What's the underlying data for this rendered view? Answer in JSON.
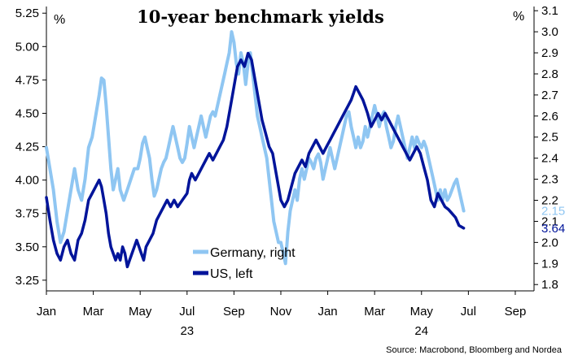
{
  "chart_data": {
    "type": "line",
    "title": "10-year benchmark yields",
    "left_axis": {
      "unit": "%",
      "ticks": [
        "5.25",
        "5.00",
        "4.75",
        "4.50",
        "4.25",
        "4.00",
        "3.75",
        "3.50",
        "3.25"
      ],
      "range": [
        3.17,
        5.3
      ]
    },
    "right_axis": {
      "unit": "%",
      "ticks": [
        "3.1",
        "3.0",
        "2.9",
        "2.8",
        "2.7",
        "2.6",
        "2.5",
        "2.4",
        "2.3",
        "2.2",
        "2.1",
        "2.0",
        "1.9",
        "1.8"
      ],
      "range": [
        1.77,
        3.12
      ]
    },
    "x_axis": {
      "ticks": [
        "Jan",
        "Mar",
        "May",
        "Jul",
        "Sep",
        "Nov",
        "Jan",
        "Mar",
        "May",
        "Jul",
        "Sep"
      ],
      "years": [
        {
          "label": "23",
          "under": 3
        },
        {
          "label": "24",
          "under": 8
        }
      ],
      "range": [
        0,
        20.8
      ]
    },
    "legend_position": "bottom-center",
    "series": [
      {
        "name": "Germany, right",
        "axis": "right",
        "color": "#8fc6f2",
        "end_label": "2.15",
        "points": [
          [
            0.0,
            2.45
          ],
          [
            0.15,
            2.35
          ],
          [
            0.3,
            2.25
          ],
          [
            0.45,
            2.1
          ],
          [
            0.6,
            2.0
          ],
          [
            0.75,
            2.05
          ],
          [
            0.9,
            2.15
          ],
          [
            1.05,
            2.25
          ],
          [
            1.2,
            2.35
          ],
          [
            1.35,
            2.25
          ],
          [
            1.5,
            2.2
          ],
          [
            1.65,
            2.3
          ],
          [
            1.8,
            2.45
          ],
          [
            1.95,
            2.5
          ],
          [
            2.1,
            2.6
          ],
          [
            2.25,
            2.7
          ],
          [
            2.35,
            2.78
          ],
          [
            2.45,
            2.77
          ],
          [
            2.55,
            2.65
          ],
          [
            2.65,
            2.5
          ],
          [
            2.75,
            2.35
          ],
          [
            2.85,
            2.25
          ],
          [
            2.95,
            2.3
          ],
          [
            3.05,
            2.35
          ],
          [
            3.15,
            2.25
          ],
          [
            3.3,
            2.2
          ],
          [
            3.45,
            2.25
          ],
          [
            3.6,
            2.3
          ],
          [
            3.75,
            2.35
          ],
          [
            3.9,
            2.35
          ],
          [
            4.0,
            2.4
          ],
          [
            4.1,
            2.47
          ],
          [
            4.2,
            2.5
          ],
          [
            4.3,
            2.45
          ],
          [
            4.4,
            2.4
          ],
          [
            4.5,
            2.3
          ],
          [
            4.6,
            2.22
          ],
          [
            4.7,
            2.25
          ],
          [
            4.8,
            2.3
          ],
          [
            4.9,
            2.35
          ],
          [
            5.0,
            2.38
          ],
          [
            5.1,
            2.4
          ],
          [
            5.2,
            2.45
          ],
          [
            5.3,
            2.5
          ],
          [
            5.4,
            2.55
          ],
          [
            5.5,
            2.5
          ],
          [
            5.6,
            2.45
          ],
          [
            5.7,
            2.4
          ],
          [
            5.8,
            2.38
          ],
          [
            5.9,
            2.4
          ],
          [
            6.0,
            2.47
          ],
          [
            6.1,
            2.55
          ],
          [
            6.2,
            2.5
          ],
          [
            6.3,
            2.45
          ],
          [
            6.4,
            2.5
          ],
          [
            6.5,
            2.55
          ],
          [
            6.6,
            2.6
          ],
          [
            6.7,
            2.55
          ],
          [
            6.8,
            2.5
          ],
          [
            6.9,
            2.55
          ],
          [
            7.0,
            2.6
          ],
          [
            7.1,
            2.62
          ],
          [
            7.2,
            2.6
          ],
          [
            7.3,
            2.65
          ],
          [
            7.4,
            2.7
          ],
          [
            7.5,
            2.75
          ],
          [
            7.6,
            2.8
          ],
          [
            7.7,
            2.85
          ],
          [
            7.8,
            2.9
          ],
          [
            7.9,
            3.0
          ],
          [
            8.0,
            2.95
          ],
          [
            8.1,
            2.85
          ],
          [
            8.2,
            2.8
          ],
          [
            8.3,
            2.9
          ],
          [
            8.4,
            2.85
          ],
          [
            8.5,
            2.75
          ],
          [
            8.6,
            2.85
          ],
          [
            8.7,
            2.9
          ],
          [
            8.8,
            2.8
          ],
          [
            8.9,
            2.7
          ],
          [
            9.0,
            2.6
          ],
          [
            9.1,
            2.55
          ],
          [
            9.2,
            2.5
          ],
          [
            9.3,
            2.45
          ],
          [
            9.4,
            2.4
          ],
          [
            9.5,
            2.3
          ],
          [
            9.6,
            2.2
          ],
          [
            9.7,
            2.1
          ],
          [
            9.8,
            2.05
          ],
          [
            9.9,
            2.0
          ],
          [
            10.0,
            2.0
          ],
          [
            10.1,
            1.95
          ],
          [
            10.2,
            1.9
          ],
          [
            10.3,
            2.05
          ],
          [
            10.4,
            2.15
          ],
          [
            10.5,
            2.2
          ],
          [
            10.6,
            2.25
          ],
          [
            10.7,
            2.2
          ],
          [
            10.8,
            2.3
          ],
          [
            10.9,
            2.35
          ],
          [
            11.0,
            2.3
          ],
          [
            11.1,
            2.35
          ],
          [
            11.2,
            2.4
          ],
          [
            11.3,
            2.38
          ],
          [
            11.4,
            2.35
          ],
          [
            11.5,
            2.4
          ],
          [
            11.6,
            2.42
          ],
          [
            11.7,
            2.38
          ],
          [
            11.8,
            2.3
          ],
          [
            11.9,
            2.35
          ],
          [
            12.0,
            2.4
          ],
          [
            12.1,
            2.45
          ],
          [
            12.2,
            2.4
          ],
          [
            12.3,
            2.35
          ],
          [
            12.4,
            2.4
          ],
          [
            12.5,
            2.45
          ],
          [
            12.6,
            2.5
          ],
          [
            12.7,
            2.55
          ],
          [
            12.8,
            2.6
          ],
          [
            12.9,
            2.62
          ],
          [
            13.0,
            2.55
          ],
          [
            13.1,
            2.5
          ],
          [
            13.2,
            2.45
          ],
          [
            13.3,
            2.5
          ],
          [
            13.4,
            2.45
          ],
          [
            13.5,
            2.48
          ],
          [
            13.6,
            2.55
          ],
          [
            13.7,
            2.5
          ],
          [
            13.8,
            2.55
          ],
          [
            13.9,
            2.6
          ],
          [
            14.0,
            2.65
          ],
          [
            14.1,
            2.6
          ],
          [
            14.2,
            2.55
          ],
          [
            14.3,
            2.6
          ],
          [
            14.4,
            2.62
          ],
          [
            14.5,
            2.55
          ],
          [
            14.6,
            2.5
          ],
          [
            14.7,
            2.45
          ],
          [
            14.8,
            2.48
          ],
          [
            14.9,
            2.55
          ],
          [
            15.0,
            2.6
          ],
          [
            15.1,
            2.55
          ],
          [
            15.2,
            2.5
          ],
          [
            15.3,
            2.45
          ],
          [
            15.4,
            2.4
          ],
          [
            15.5,
            2.45
          ],
          [
            15.6,
            2.5
          ],
          [
            15.7,
            2.45
          ],
          [
            15.8,
            2.5
          ],
          [
            15.9,
            2.47
          ],
          [
            16.0,
            2.45
          ],
          [
            16.1,
            2.48
          ],
          [
            16.2,
            2.45
          ],
          [
            16.3,
            2.4
          ],
          [
            16.4,
            2.35
          ],
          [
            16.5,
            2.3
          ],
          [
            16.6,
            2.25
          ],
          [
            16.7,
            2.2
          ],
          [
            16.8,
            2.25
          ],
          [
            16.9,
            2.2
          ],
          [
            17.0,
            2.25
          ],
          [
            17.1,
            2.2
          ],
          [
            17.2,
            2.22
          ],
          [
            17.3,
            2.25
          ],
          [
            17.4,
            2.28
          ],
          [
            17.5,
            2.3
          ],
          [
            17.6,
            2.25
          ],
          [
            17.7,
            2.2
          ],
          [
            17.8,
            2.15
          ]
        ]
      },
      {
        "name": "US, left",
        "axis": "left",
        "color": "#00149a",
        "end_label": "3.64",
        "points": [
          [
            0.0,
            3.87
          ],
          [
            0.15,
            3.7
          ],
          [
            0.3,
            3.55
          ],
          [
            0.45,
            3.45
          ],
          [
            0.6,
            3.4
          ],
          [
            0.75,
            3.5
          ],
          [
            0.9,
            3.55
          ],
          [
            1.05,
            3.45
          ],
          [
            1.2,
            3.4
          ],
          [
            1.35,
            3.55
          ],
          [
            1.5,
            3.6
          ],
          [
            1.65,
            3.7
          ],
          [
            1.8,
            3.85
          ],
          [
            1.95,
            3.9
          ],
          [
            2.1,
            3.95
          ],
          [
            2.25,
            4.0
          ],
          [
            2.35,
            3.95
          ],
          [
            2.45,
            3.85
          ],
          [
            2.55,
            3.75
          ],
          [
            2.65,
            3.6
          ],
          [
            2.75,
            3.5
          ],
          [
            2.85,
            3.45
          ],
          [
            2.95,
            3.4
          ],
          [
            3.05,
            3.45
          ],
          [
            3.15,
            3.4
          ],
          [
            3.25,
            3.5
          ],
          [
            3.35,
            3.45
          ],
          [
            3.45,
            3.35
          ],
          [
            3.55,
            3.4
          ],
          [
            3.65,
            3.45
          ],
          [
            3.75,
            3.5
          ],
          [
            3.85,
            3.55
          ],
          [
            3.95,
            3.5
          ],
          [
            4.05,
            3.45
          ],
          [
            4.15,
            3.4
          ],
          [
            4.25,
            3.5
          ],
          [
            4.4,
            3.55
          ],
          [
            4.55,
            3.6
          ],
          [
            4.7,
            3.7
          ],
          [
            4.85,
            3.75
          ],
          [
            5.0,
            3.8
          ],
          [
            5.15,
            3.85
          ],
          [
            5.3,
            3.8
          ],
          [
            5.45,
            3.85
          ],
          [
            5.6,
            3.8
          ],
          [
            5.8,
            3.85
          ],
          [
            6.0,
            3.9
          ],
          [
            6.1,
            4.0
          ],
          [
            6.2,
            4.05
          ],
          [
            6.35,
            4.0
          ],
          [
            6.5,
            4.05
          ],
          [
            6.65,
            4.1
          ],
          [
            6.8,
            4.15
          ],
          [
            6.95,
            4.2
          ],
          [
            7.1,
            4.15
          ],
          [
            7.25,
            4.2
          ],
          [
            7.4,
            4.25
          ],
          [
            7.55,
            4.3
          ],
          [
            7.7,
            4.4
          ],
          [
            7.85,
            4.55
          ],
          [
            8.0,
            4.7
          ],
          [
            8.15,
            4.85
          ],
          [
            8.3,
            4.9
          ],
          [
            8.45,
            4.85
          ],
          [
            8.6,
            4.95
          ],
          [
            8.75,
            4.9
          ],
          [
            8.9,
            4.75
          ],
          [
            9.05,
            4.6
          ],
          [
            9.2,
            4.45
          ],
          [
            9.35,
            4.35
          ],
          [
            9.5,
            4.25
          ],
          [
            9.65,
            4.2
          ],
          [
            9.8,
            4.05
          ],
          [
            9.9,
            3.95
          ],
          [
            10.0,
            3.85
          ],
          [
            10.15,
            3.8
          ],
          [
            10.3,
            3.85
          ],
          [
            10.45,
            3.95
          ],
          [
            10.6,
            4.05
          ],
          [
            10.75,
            4.1
          ],
          [
            10.9,
            4.15
          ],
          [
            11.05,
            4.1
          ],
          [
            11.2,
            4.2
          ],
          [
            11.35,
            4.25
          ],
          [
            11.5,
            4.3
          ],
          [
            11.65,
            4.25
          ],
          [
            11.8,
            4.2
          ],
          [
            11.95,
            4.25
          ],
          [
            12.1,
            4.3
          ],
          [
            12.25,
            4.35
          ],
          [
            12.4,
            4.4
          ],
          [
            12.55,
            4.45
          ],
          [
            12.7,
            4.5
          ],
          [
            12.85,
            4.55
          ],
          [
            13.0,
            4.6
          ],
          [
            13.1,
            4.65
          ],
          [
            13.2,
            4.7
          ],
          [
            13.35,
            4.65
          ],
          [
            13.5,
            4.6
          ],
          [
            13.6,
            4.55
          ],
          [
            13.7,
            4.5
          ],
          [
            13.85,
            4.4
          ],
          [
            14.0,
            4.45
          ],
          [
            14.15,
            4.5
          ],
          [
            14.3,
            4.45
          ],
          [
            14.45,
            4.5
          ],
          [
            14.6,
            4.45
          ],
          [
            14.75,
            4.4
          ],
          [
            14.9,
            4.35
          ],
          [
            15.05,
            4.3
          ],
          [
            15.2,
            4.25
          ],
          [
            15.35,
            4.2
          ],
          [
            15.5,
            4.15
          ],
          [
            15.65,
            4.2
          ],
          [
            15.8,
            4.25
          ],
          [
            15.95,
            4.2
          ],
          [
            16.1,
            4.1
          ],
          [
            16.25,
            4.0
          ],
          [
            16.4,
            3.85
          ],
          [
            16.55,
            3.8
          ],
          [
            16.7,
            3.9
          ],
          [
            16.85,
            3.85
          ],
          [
            17.0,
            3.8
          ],
          [
            17.15,
            3.78
          ],
          [
            17.3,
            3.75
          ],
          [
            17.45,
            3.72
          ],
          [
            17.6,
            3.66
          ],
          [
            17.8,
            3.64
          ]
        ]
      }
    ]
  },
  "source": "Source: Macrobond, Bloomberg and Nordea"
}
